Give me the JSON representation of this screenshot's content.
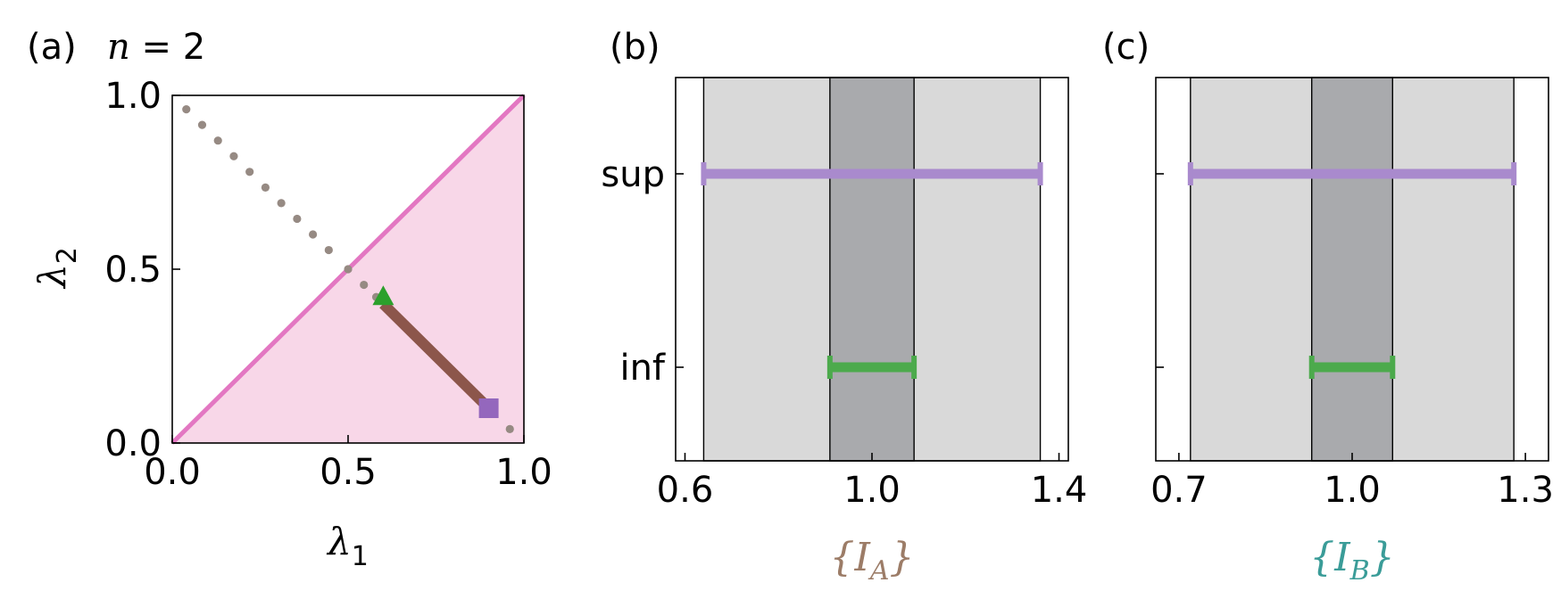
{
  "chart_data": [
    {
      "panel_label": "(a)",
      "annotation": "n = 2",
      "annotation_var": "n",
      "annotation_rest": " = 2",
      "type": "scatter",
      "xlabel": "λ",
      "xlabel_sub": "1",
      "ylabel": "λ",
      "ylabel_sub": "2",
      "xlim": [
        0,
        1
      ],
      "ylim": [
        0,
        1
      ],
      "xticks": [
        "0.0",
        "0.5",
        "1.0"
      ],
      "yticks": [
        "0.0",
        "0.5",
        "1.0"
      ],
      "grid": false,
      "shaded_region": {
        "description": "lambda2 <= lambda1",
        "color": "#f8d7e8"
      },
      "diagonal": {
        "x": [
          0,
          1
        ],
        "y": [
          0,
          1
        ],
        "color": "#e377c2"
      },
      "dotted_points": {
        "x": [
          0.04,
          0.085,
          0.13,
          0.175,
          0.22,
          0.265,
          0.31,
          0.355,
          0.4,
          0.445,
          0.5,
          0.545,
          0.58,
          0.96
        ],
        "y": [
          0.96,
          0.915,
          0.87,
          0.825,
          0.78,
          0.735,
          0.69,
          0.645,
          0.6,
          0.555,
          0.5,
          0.455,
          0.42,
          0.04
        ],
        "color": "#968a83"
      },
      "segment": {
        "x": [
          0.6,
          0.9
        ],
        "y": [
          0.4,
          0.1
        ],
        "color": "#8c564b"
      },
      "triangle_marker": {
        "x": 0.6,
        "y": 0.42,
        "color": "#2ca02c"
      },
      "square_marker": {
        "x": 0.9,
        "y": 0.1,
        "color": "#9467bd"
      }
    },
    {
      "panel_label": "(b)",
      "type": "range",
      "xlabel": "{I",
      "xlabel_sub": "A",
      "xlabel_close": "}",
      "xlabel_color": "#9c7c67",
      "xlim": [
        0.58,
        1.42
      ],
      "xticks": [
        0.6,
        1.0,
        1.4
      ],
      "xtick_labels": [
        "0.6",
        "1.0",
        "1.4"
      ],
      "yticks": [
        "sup",
        "inf"
      ],
      "light_band": [
        0.64,
        1.36
      ],
      "dark_band": [
        0.91,
        1.09
      ],
      "light_color": "#d9d9d9",
      "dark_color": "#a9aaad",
      "sup_range": [
        0.64,
        1.36
      ],
      "inf_range": [
        0.91,
        1.09
      ],
      "sup_color": "#a98acd",
      "inf_color": "#4caa4c"
    },
    {
      "panel_label": "(c)",
      "type": "range",
      "xlabel": "{I",
      "xlabel_sub": "B",
      "xlabel_close": "}",
      "xlabel_color": "#3a9c98",
      "xlim": [
        0.66,
        1.34
      ],
      "xticks": [
        0.7,
        1.0,
        1.3
      ],
      "xtick_labels": [
        "0.7",
        "1.0",
        "1.3"
      ],
      "yticks": [
        "",
        ""
      ],
      "light_band": [
        0.72,
        1.28
      ],
      "dark_band": [
        0.93,
        1.07
      ],
      "light_color": "#d9d9d9",
      "dark_color": "#a9aaad",
      "sup_range": [
        0.72,
        1.28
      ],
      "inf_range": [
        0.93,
        1.07
      ],
      "sup_color": "#a98acd",
      "inf_color": "#4caa4c"
    }
  ]
}
